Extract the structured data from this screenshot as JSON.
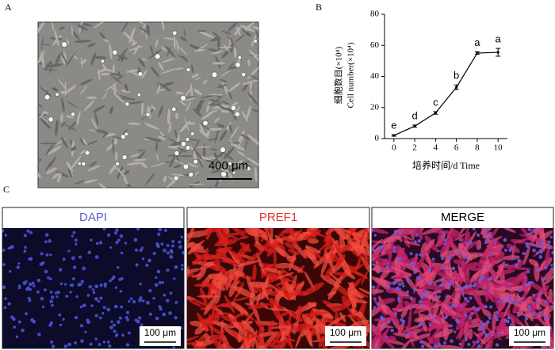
{
  "panel_labels": [
    "A",
    "B",
    "C"
  ],
  "image_a": {
    "scale_bar": "400 μm"
  },
  "chart_data": {
    "type": "line",
    "y_label_lines": [
      "细胞数目(×10⁴)",
      "Cell number(×10⁴)"
    ],
    "x_label": "培养时间/d Time",
    "x": [
      0,
      2,
      4,
      6,
      8,
      10
    ],
    "values": [
      2,
      8,
      16.5,
      33,
      55,
      55.5
    ],
    "errors": [
      0.5,
      0.7,
      0.8,
      1.5,
      0.8,
      2.5
    ],
    "significance": [
      "e",
      "d",
      "c",
      "b",
      "a",
      "a"
    ],
    "color": "#000000",
    "xlim": [
      -0.9,
      10.9
    ],
    "xticks": [
      0,
      2,
      4,
      6,
      8,
      10
    ],
    "ylim": [
      0,
      80
    ],
    "yticks": [
      0,
      20,
      40,
      60,
      80
    ]
  },
  "images_c": [
    {
      "title": "DAPI",
      "title_color": "#5a5fc8",
      "scale_bar": "100 μm"
    },
    {
      "title": "PREF1",
      "title_color": "#e8332a",
      "scale_bar": "100 μm"
    },
    {
      "title": "MERGE",
      "title_color": "#000000",
      "scale_bar": "100 μm"
    }
  ]
}
